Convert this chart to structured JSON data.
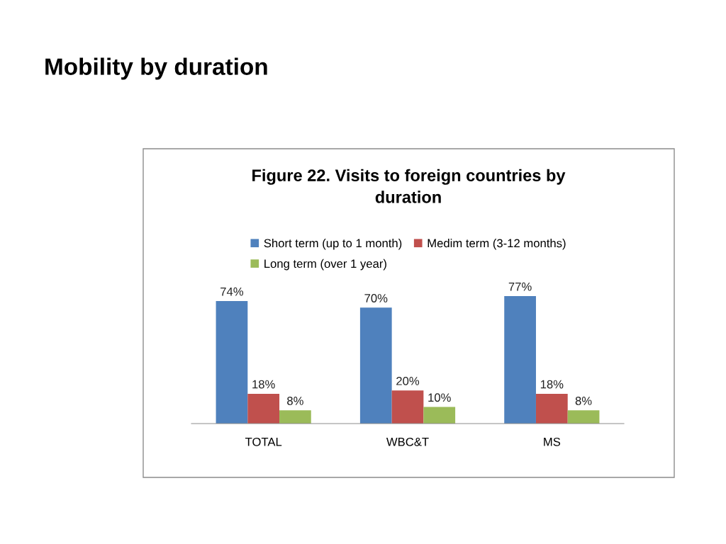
{
  "chart_data": {
    "type": "bar",
    "title": "Mobility by duration",
    "subtitle": "Figure 22. Visits to foreign countries by duration",
    "categories": [
      "TOTAL",
      "WBC&T",
      "MS"
    ],
    "series": [
      {
        "name": "Short term (up to 1 month)",
        "color": "#4f81bd",
        "values": [
          74,
          70,
          77
        ],
        "value_labels": [
          "74%",
          "70%",
          "77%"
        ]
      },
      {
        "name": "Medim term (3-12 months)",
        "color": "#c0504d",
        "values": [
          18,
          20,
          18
        ],
        "value_labels": [
          "18%",
          "20%",
          "18%"
        ]
      },
      {
        "name": "Long term (over 1 year)",
        "color": "#9bbb59",
        "values": [
          8,
          10,
          8
        ],
        "value_labels": [
          "8%",
          "10%",
          "8%"
        ]
      }
    ],
    "legend": "top"
  }
}
